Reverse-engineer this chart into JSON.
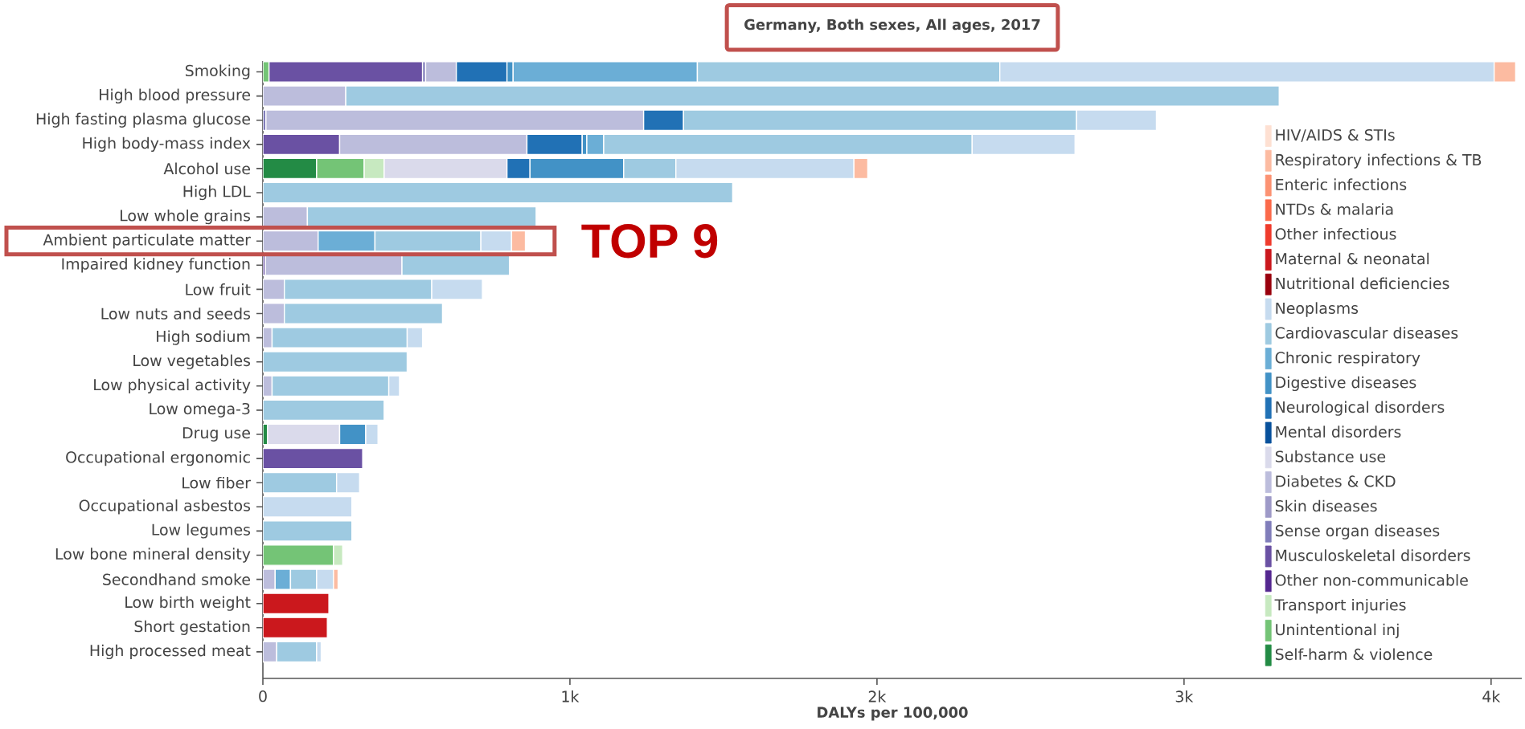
{
  "chart_data": {
    "type": "bar",
    "orientation": "horizontal",
    "stacked": true,
    "title": "Germany, Both sexes, All ages, 2017",
    "xlabel": "DALYs per 100,000",
    "categories": [
      "Smoking",
      "High blood pressure",
      "High fasting plasma glucose",
      "High body-mass index",
      "Alcohol use",
      "High LDL",
      "Low whole grains",
      "Ambient particulate matter",
      "Impaired kidney function",
      "Low fruit",
      "Low nuts and seeds",
      "High sodium",
      "Low vegetables",
      "Low physical activity",
      "Low omega-3",
      "Drug use",
      "Occupational ergonomic",
      "Low fiber",
      "Occupational asbestos",
      "Low legumes",
      "Low bone mineral density",
      "Secondhand smoke",
      "Low birth weight",
      "Short gestation",
      "High processed meat"
    ],
    "xlim": [
      0,
      4100
    ],
    "xticks": [
      0,
      {
        "value": 1000,
        "label": "1k"
      },
      {
        "value": 2000,
        "label": "2k"
      },
      {
        "value": 3000,
        "label": "3k"
      },
      {
        "value": 4000,
        "label": "4k"
      }
    ],
    "legend": "right",
    "annotations": [
      "TOP 9"
    ],
    "series": [
      {
        "name": "Self-harm & violence",
        "color": "#238b45",
        "values": [
          null,
          null,
          null,
          null,
          175,
          null,
          null,
          null,
          null,
          null,
          null,
          null,
          null,
          null,
          null,
          15,
          null,
          null,
          null,
          null,
          null,
          null,
          null,
          null,
          null
        ]
      },
      {
        "name": "Unintentional inj",
        "color": "#74c476",
        "values": [
          20,
          null,
          null,
          null,
          155,
          null,
          null,
          null,
          null,
          null,
          null,
          null,
          null,
          null,
          null,
          null,
          null,
          null,
          null,
          null,
          230,
          null,
          null,
          null,
          null
        ]
      },
      {
        "name": "Transport injuries",
        "color": "#c7e9c0",
        "values": [
          null,
          null,
          null,
          null,
          65,
          null,
          null,
          null,
          null,
          null,
          null,
          null,
          null,
          null,
          null,
          null,
          null,
          null,
          null,
          null,
          30,
          null,
          null,
          null,
          null
        ]
      },
      {
        "name": "Other non-communicable",
        "color": "#54278f",
        "values": [
          null,
          null,
          null,
          null,
          null,
          null,
          null,
          null,
          null,
          null,
          null,
          null,
          null,
          null,
          null,
          null,
          null,
          null,
          null,
          null,
          null,
          null,
          null,
          null,
          null
        ]
      },
      {
        "name": "Musculoskeletal disorders",
        "color": "#6a51a3",
        "values": [
          500,
          null,
          null,
          250,
          null,
          null,
          null,
          null,
          8,
          null,
          null,
          null,
          null,
          null,
          null,
          null,
          325,
          null,
          null,
          null,
          null,
          null,
          null,
          null,
          null
        ]
      },
      {
        "name": "Sense organ diseases",
        "color": "#807dba",
        "values": [
          10,
          null,
          10,
          null,
          null,
          null,
          null,
          null,
          null,
          null,
          null,
          null,
          null,
          null,
          null,
          null,
          null,
          null,
          null,
          null,
          null,
          null,
          null,
          null,
          null
        ]
      },
      {
        "name": "Skin diseases",
        "color": "#9e9ac8",
        "values": [
          null,
          null,
          null,
          null,
          null,
          null,
          null,
          null,
          null,
          null,
          null,
          null,
          null,
          null,
          null,
          null,
          null,
          null,
          null,
          null,
          null,
          null,
          null,
          null,
          null
        ]
      },
      {
        "name": "Diabetes & CKD",
        "color": "#bcbddc",
        "values": [
          100,
          270,
          1230,
          610,
          null,
          null,
          145,
          180,
          445,
          70,
          70,
          30,
          null,
          30,
          null,
          null,
          null,
          null,
          null,
          null,
          null,
          40,
          null,
          null,
          45
        ]
      },
      {
        "name": "Substance use",
        "color": "#dadaeb",
        "values": [
          null,
          null,
          null,
          null,
          400,
          null,
          null,
          null,
          null,
          null,
          null,
          null,
          null,
          null,
          null,
          235,
          null,
          null,
          null,
          null,
          null,
          null,
          null,
          null,
          null
        ]
      },
      {
        "name": "Mental disorders",
        "color": "#08519c",
        "values": [
          null,
          null,
          null,
          null,
          null,
          null,
          null,
          null,
          null,
          null,
          null,
          null,
          null,
          null,
          null,
          null,
          null,
          null,
          null,
          null,
          null,
          null,
          null,
          null,
          null
        ]
      },
      {
        "name": "Neurological disorders",
        "color": "#2171b5",
        "values": [
          165,
          null,
          130,
          180,
          75,
          null,
          null,
          null,
          null,
          null,
          null,
          null,
          null,
          null,
          null,
          null,
          null,
          null,
          null,
          null,
          null,
          null,
          null,
          null,
          null
        ]
      },
      {
        "name": "Digestive diseases",
        "color": "#4292c6",
        "values": [
          20,
          null,
          null,
          15,
          305,
          null,
          null,
          null,
          null,
          null,
          null,
          null,
          null,
          null,
          null,
          85,
          null,
          null,
          null,
          null,
          null,
          null,
          null,
          null,
          null
        ]
      },
      {
        "name": "Chronic respiratory",
        "color": "#6baed6",
        "values": [
          600,
          null,
          null,
          55,
          null,
          null,
          null,
          185,
          null,
          null,
          null,
          null,
          null,
          null,
          null,
          null,
          null,
          null,
          null,
          null,
          null,
          50,
          null,
          null,
          null
        ]
      },
      {
        "name": "Cardiovascular diseases",
        "color": "#9ecae1",
        "values": [
          985,
          3040,
          1280,
          1200,
          170,
          1530,
          745,
          345,
          350,
          480,
          515,
          440,
          470,
          380,
          395,
          null,
          null,
          240,
          null,
          290,
          null,
          85,
          null,
          null,
          130
        ]
      },
      {
        "name": "Neoplasms",
        "color": "#c6dbef",
        "values": [
          1610,
          null,
          260,
          335,
          580,
          null,
          null,
          100,
          null,
          165,
          null,
          50,
          null,
          35,
          null,
          40,
          null,
          75,
          290,
          null,
          null,
          55,
          null,
          null,
          15
        ]
      },
      {
        "name": "Nutritional deficiencies",
        "color": "#99000d",
        "values": [
          null,
          null,
          null,
          null,
          null,
          null,
          null,
          null,
          null,
          null,
          null,
          null,
          null,
          null,
          null,
          null,
          null,
          null,
          null,
          null,
          null,
          null,
          null,
          null,
          null
        ]
      },
      {
        "name": "Maternal & neonatal",
        "color": "#cb181d",
        "values": [
          null,
          null,
          null,
          null,
          null,
          null,
          null,
          null,
          null,
          null,
          null,
          null,
          null,
          null,
          null,
          null,
          null,
          null,
          null,
          null,
          null,
          null,
          215,
          210,
          null
        ]
      },
      {
        "name": "Other infectious",
        "color": "#ef3b2c",
        "values": [
          null,
          null,
          null,
          null,
          null,
          null,
          null,
          null,
          null,
          null,
          null,
          null,
          null,
          null,
          null,
          null,
          null,
          null,
          null,
          null,
          null,
          null,
          null,
          null,
          null
        ]
      },
      {
        "name": "NTDs & malaria",
        "color": "#fb6a4a",
        "values": [
          null,
          null,
          null,
          null,
          null,
          null,
          null,
          null,
          null,
          null,
          null,
          null,
          null,
          null,
          null,
          null,
          null,
          null,
          null,
          null,
          null,
          null,
          null,
          null,
          null
        ]
      },
      {
        "name": "Enteric infections",
        "color": "#fc9272",
        "values": [
          null,
          null,
          null,
          null,
          null,
          null,
          null,
          null,
          null,
          null,
          null,
          null,
          null,
          null,
          null,
          null,
          null,
          null,
          null,
          null,
          null,
          null,
          null,
          null,
          null
        ]
      },
      {
        "name": "Respiratory infections & TB",
        "color": "#fcbba1",
        "values": [
          70,
          null,
          null,
          null,
          45,
          null,
          null,
          45,
          null,
          null,
          null,
          null,
          null,
          null,
          null,
          null,
          null,
          null,
          null,
          null,
          null,
          15,
          null,
          null,
          null
        ]
      },
      {
        "name": "HIV/AIDS & STIs",
        "color": "#fee0d2",
        "values": [
          null,
          null,
          null,
          null,
          null,
          null,
          null,
          null,
          null,
          null,
          null,
          null,
          null,
          null,
          null,
          null,
          null,
          null,
          null,
          null,
          null,
          null,
          null,
          null,
          null
        ]
      }
    ]
  }
}
